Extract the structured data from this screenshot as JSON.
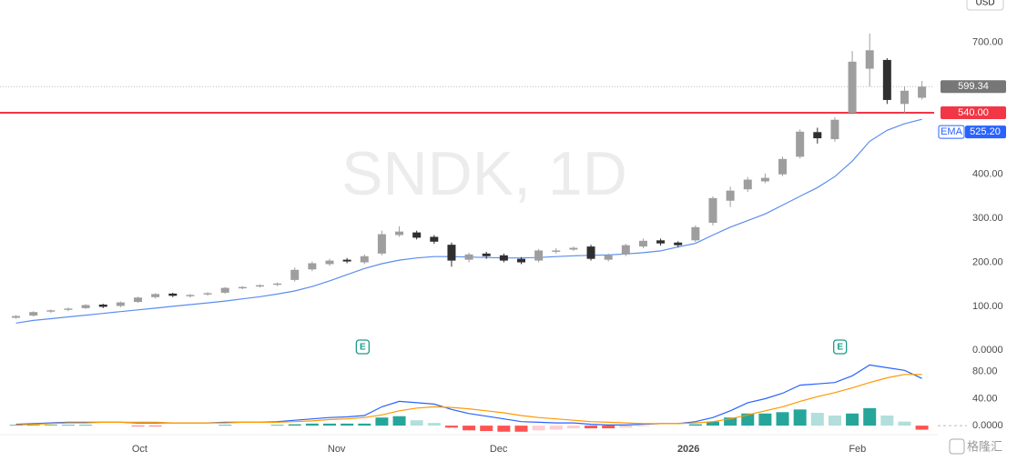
{
  "logo": "格隆汇",
  "chart_data": [
    {
      "type": "candlestick",
      "title": "SNDK, 1D",
      "currency": "USD",
      "xlim": [
        0,
        53.2
      ],
      "xticks": [
        {
          "value": 7.6,
          "label": "Oct"
        },
        {
          "value": 18.9,
          "label": "Nov"
        },
        {
          "value": 28.2,
          "label": "Dec"
        },
        {
          "value": 39.1,
          "label": "2026"
        },
        {
          "value": 48.8,
          "label": "Feb"
        }
      ],
      "ylim": [
        -20,
        790
      ],
      "yticks": [
        {
          "value": 0,
          "label": "0.0000"
        },
        {
          "value": 100,
          "label": "100.00"
        },
        {
          "value": 200,
          "label": "200.00"
        },
        {
          "value": 300,
          "label": "300.00"
        },
        {
          "value": 400,
          "label": "400.00"
        },
        {
          "value": 700,
          "label": "700.00"
        }
      ],
      "up_color": "#9e9e9e",
      "down_color": "#2f2f2f",
      "open": [
        74,
        79,
        88,
        92,
        96,
        104,
        101,
        110,
        121,
        129,
        123,
        127,
        131,
        141,
        145,
        149,
        160,
        184,
        196,
        206,
        200,
        220,
        262,
        268,
        258,
        240,
        206,
        220,
        216,
        208,
        204,
        224,
        229,
        236,
        206,
        218,
        236,
        250,
        245,
        250,
        290,
        340,
        366,
        384,
        400,
        440,
        496,
        480,
        540,
        640,
        660,
        560,
        574
      ],
      "high": [
        80,
        89,
        93,
        97,
        105,
        106,
        111,
        122,
        130,
        131,
        128,
        132,
        144,
        146,
        150,
        154,
        188,
        202,
        208,
        210,
        218,
        272,
        282,
        272,
        262,
        245,
        222,
        224,
        220,
        212,
        230,
        232,
        236,
        240,
        220,
        242,
        254,
        254,
        248,
        284,
        350,
        372,
        394,
        402,
        440,
        502,
        506,
        530,
        680,
        720,
        664,
        600,
        612
      ],
      "low": [
        72,
        77,
        85,
        89,
        94,
        96,
        98,
        108,
        118,
        121,
        120,
        124,
        129,
        139,
        143,
        146,
        156,
        180,
        192,
        198,
        196,
        216,
        258,
        252,
        242,
        190,
        200,
        208,
        200,
        196,
        200,
        220,
        226,
        204,
        202,
        214,
        232,
        238,
        234,
        246,
        284,
        326,
        360,
        380,
        396,
        436,
        470,
        474,
        536,
        600,
        560,
        540,
        570
      ],
      "close": [
        78,
        87,
        91,
        95,
        103,
        99,
        109,
        120,
        128,
        124,
        126,
        130,
        142,
        144,
        148,
        152,
        183,
        198,
        204,
        202,
        214,
        264,
        270,
        256,
        247,
        204,
        218,
        214,
        204,
        200,
        227,
        227,
        233,
        208,
        216,
        239,
        249,
        243,
        239,
        280,
        346,
        363,
        388,
        392,
        435,
        497,
        482,
        524,
        656,
        682,
        569,
        590,
        599.34
      ],
      "ema": {
        "name": "EMA",
        "color": "#5b8def",
        "value_label": "525.20",
        "values": [
          62,
          68,
          72,
          76,
          80,
          84,
          88,
          92,
          96,
          100,
          104,
          108,
          112,
          117,
          122,
          128,
          135,
          145,
          158,
          172,
          186,
          197,
          205,
          210,
          213,
          213,
          212,
          211,
          210,
          210,
          211,
          213,
          215,
          216,
          217,
          219,
          222,
          226,
          235,
          243,
          262,
          280,
          295,
          310,
          330,
          350,
          370,
          395,
          430,
          475,
          500,
          515,
          525.2
        ]
      },
      "last_price": {
        "value": 599.34,
        "label": "599.34",
        "color": "#777777"
      },
      "hline": {
        "value": 540,
        "label": "540.00",
        "color": "#f23645"
      },
      "markers": [
        {
          "label": "E",
          "x": 20.4
        },
        {
          "label": "E",
          "x": 47.8
        }
      ]
    },
    {
      "type": "macd",
      "ylim": [
        -12,
        100
      ],
      "yticks": [
        {
          "value": 0,
          "label": "0.0000"
        },
        {
          "value": 40,
          "label": "40.00"
        },
        {
          "value": 80,
          "label": "80.00"
        }
      ],
      "series": [
        {
          "color": "#2962ff",
          "values": [
            2,
            3,
            4,
            5,
            5,
            5,
            5,
            4,
            4,
            4,
            4,
            4,
            5,
            5,
            5,
            6,
            8,
            10,
            12,
            13,
            15,
            28,
            36,
            34,
            32,
            24,
            18,
            14,
            10,
            6,
            5,
            4,
            4,
            2,
            1,
            1,
            2,
            3,
            3,
            6,
            12,
            22,
            34,
            40,
            48,
            60,
            62,
            64,
            74,
            90,
            86,
            82,
            70
          ]
        },
        {
          "color": "#ff9800",
          "values": [
            1,
            2,
            3,
            4,
            4,
            5,
            5,
            5,
            5,
            4,
            4,
            4,
            4,
            5,
            5,
            5,
            6,
            7,
            9,
            10,
            12,
            16,
            22,
            26,
            28,
            27,
            25,
            22,
            19,
            15,
            12,
            10,
            8,
            6,
            5,
            4,
            3,
            3,
            3,
            4,
            6,
            10,
            16,
            22,
            28,
            36,
            43,
            49,
            56,
            64,
            71,
            76,
            76
          ]
        }
      ],
      "histogram": [
        1,
        1,
        1,
        1,
        1,
        0,
        0,
        -1,
        -1,
        0,
        0,
        0,
        1,
        0,
        0,
        1,
        2,
        3,
        3,
        3,
        3,
        12,
        14,
        8,
        4,
        -3,
        -7,
        -8,
        -9,
        -9,
        -7,
        -6,
        -4,
        -4,
        -4,
        -3,
        -1,
        0,
        0,
        2,
        6,
        12,
        18,
        18,
        20,
        24,
        19,
        15,
        18,
        26,
        15,
        6,
        -6
      ]
    }
  ]
}
